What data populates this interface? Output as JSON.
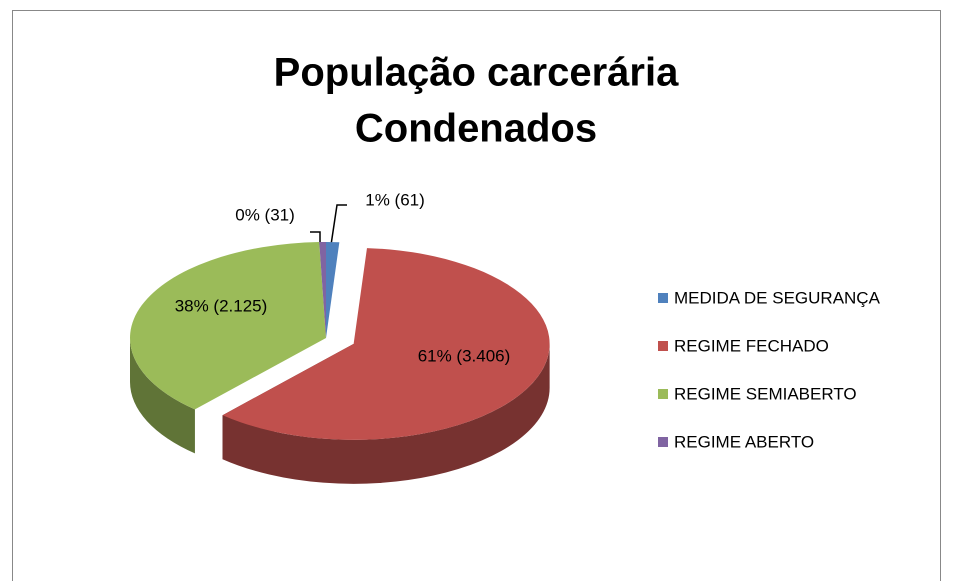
{
  "chart_data": {
    "type": "pie3d",
    "title": [
      "População carcerária",
      "Condenados"
    ],
    "categories": [
      "MEDIDA DE SEGURANÇA",
      "REGIME FECHADO",
      "REGIME SEMIABERTO",
      "REGIME ABERTO"
    ],
    "values": [
      61,
      3406,
      2125,
      31
    ],
    "value_labels": [
      "1%  (61)",
      "61% (3.406)",
      "38% (2.125)",
      "0% (31)"
    ],
    "colors": [
      "#4f81bd",
      "#c0504d",
      "#9bbb59",
      "#8064a2"
    ],
    "legend": "right"
  }
}
